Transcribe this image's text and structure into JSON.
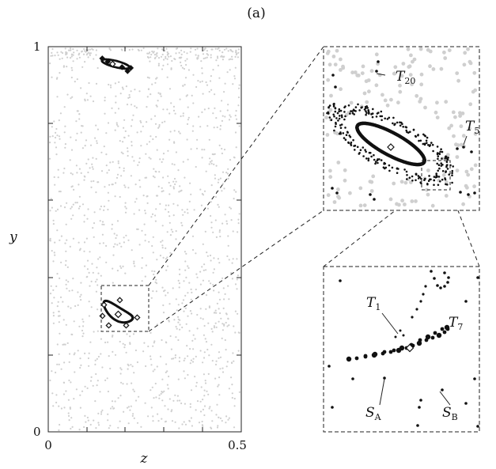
{
  "panel_label": "(a)",
  "chart_data": {
    "type": "scatter",
    "title": "",
    "xlabel": "z",
    "ylabel": "y",
    "xlim": [
      0,
      0.5
    ],
    "ylim": [
      0,
      1
    ],
    "x_tick_labels": [
      "0",
      "0.5"
    ],
    "y_tick_labels": [
      "0",
      "1"
    ],
    "grid": false,
    "annotations": {
      "T20": "T",
      "T20_sub": "20",
      "T5": "T",
      "T5_sub": "5",
      "T1": "T",
      "T1_sub": "1",
      "T7": "T",
      "T7_sub": "7",
      "SA": "S",
      "SA_sub": "A",
      "SB": "S",
      "SB_sub": "B"
    },
    "chaotic_sea": {
      "color": "#cfcfcf",
      "domain_z": [
        0,
        0.5
      ],
      "domain_y": [
        0,
        1
      ]
    },
    "islands": [
      {
        "name": "period-1 island (lower)",
        "center": [
          0.185,
          0.305
        ],
        "color": "#111111"
      },
      {
        "name": "island (upper)",
        "center": [
          0.195,
          0.955
        ],
        "color": "#111111"
      }
    ],
    "zoom_boxes": [
      {
        "name": "inset-1",
        "z_range": [
          0.135,
          0.26
        ],
        "y_range": [
          0.265,
          0.385
        ]
      }
    ]
  }
}
